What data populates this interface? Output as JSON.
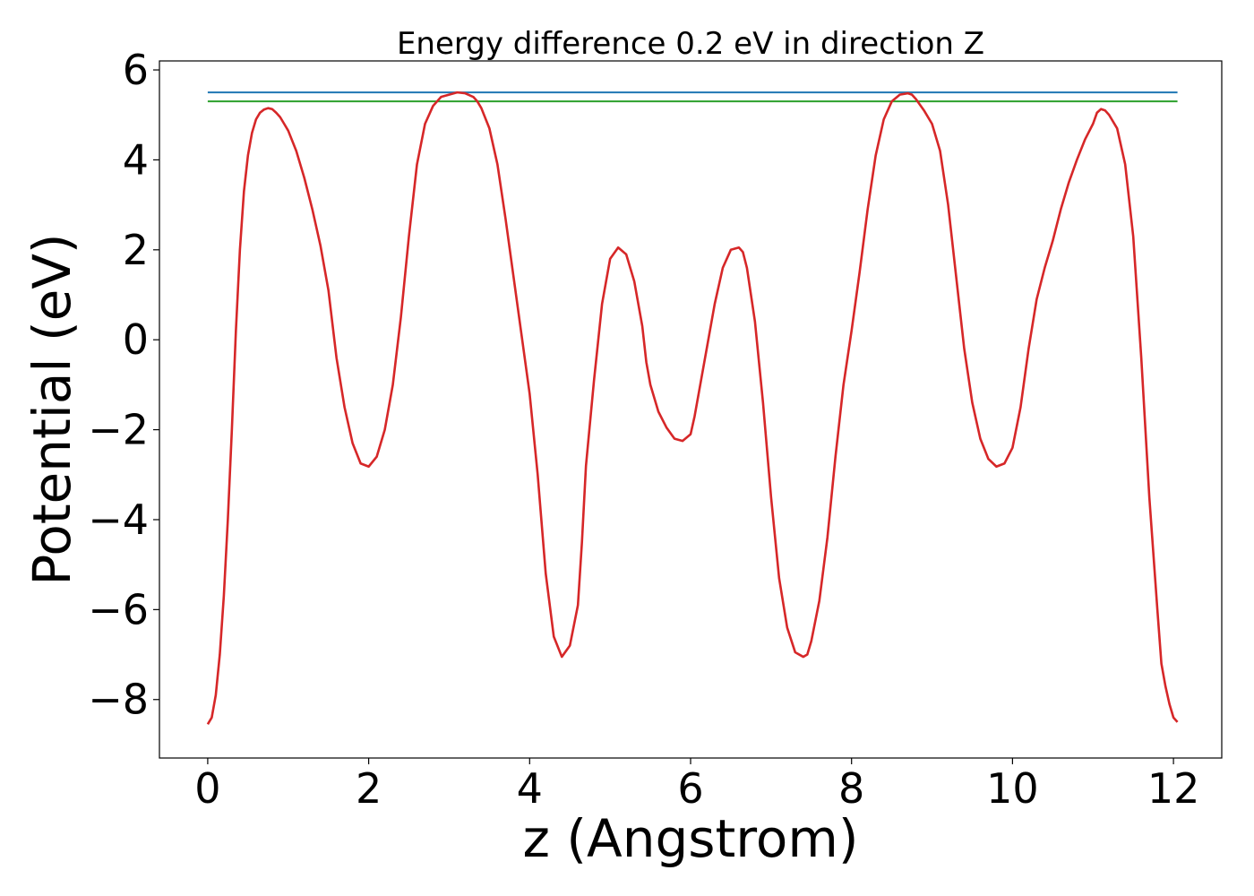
{
  "chart_data": {
    "type": "line",
    "title": "Energy difference 0.2 eV in direction Z",
    "xlabel": "z (Angstrom)",
    "ylabel": "Potential (eV)",
    "xlim": [
      -0.6,
      12.6
    ],
    "ylim": [
      -9.3,
      6.2
    ],
    "xticks": [
      0,
      2,
      4,
      6,
      8,
      10,
      12
    ],
    "yticks": [
      -8,
      -6,
      -4,
      -2,
      0,
      2,
      4,
      6
    ],
    "grid": false,
    "series": [
      {
        "color": "#1f77b4",
        "x": [
          0,
          12.05
        ],
        "y": [
          5.5,
          5.5
        ]
      },
      {
        "color": "#2ca02c",
        "x": [
          0,
          12.05
        ],
        "y": [
          5.3,
          5.3
        ]
      },
      {
        "color": "#d62728",
        "x": [
          0.0,
          0.05,
          0.1,
          0.15,
          0.2,
          0.25,
          0.3,
          0.35,
          0.4,
          0.45,
          0.5,
          0.55,
          0.6,
          0.65,
          0.7,
          0.75,
          0.8,
          0.85,
          0.9,
          0.95,
          1.0,
          1.1,
          1.2,
          1.3,
          1.4,
          1.5,
          1.6,
          1.7,
          1.8,
          1.9,
          2.0,
          2.1,
          2.2,
          2.3,
          2.4,
          2.5,
          2.6,
          2.7,
          2.8,
          2.9,
          3.0,
          3.1,
          3.2,
          3.3,
          3.35,
          3.4,
          3.5,
          3.6,
          3.7,
          3.8,
          3.9,
          4.0,
          4.1,
          4.2,
          4.3,
          4.4,
          4.5,
          4.6,
          4.65,
          4.7,
          4.8,
          4.9,
          5.0,
          5.1,
          5.2,
          5.3,
          5.4,
          5.45,
          5.5,
          5.6,
          5.7,
          5.8,
          5.9,
          6.0,
          6.05,
          6.1,
          6.2,
          6.3,
          6.4,
          6.5,
          6.6,
          6.65,
          6.7,
          6.8,
          6.9,
          7.0,
          7.1,
          7.2,
          7.3,
          7.4,
          7.45,
          7.5,
          7.6,
          7.7,
          7.8,
          7.9,
          8.0,
          8.1,
          8.2,
          8.3,
          8.4,
          8.5,
          8.6,
          8.7,
          8.75,
          8.8,
          8.9,
          9.0,
          9.1,
          9.2,
          9.3,
          9.4,
          9.5,
          9.6,
          9.7,
          9.8,
          9.9,
          10.0,
          10.1,
          10.2,
          10.3,
          10.4,
          10.5,
          10.6,
          10.7,
          10.8,
          10.9,
          11.0,
          11.05,
          11.1,
          11.15,
          11.2,
          11.3,
          11.4,
          11.5,
          11.6,
          11.7,
          11.8,
          11.85,
          11.9,
          11.95,
          12.0,
          12.05
        ],
        "y": [
          -8.55,
          -8.4,
          -7.9,
          -7.0,
          -5.7,
          -4.0,
          -2.0,
          0.2,
          2.0,
          3.3,
          4.1,
          4.6,
          4.9,
          5.05,
          5.12,
          5.15,
          5.13,
          5.05,
          4.95,
          4.8,
          4.65,
          4.2,
          3.6,
          2.9,
          2.1,
          1.1,
          -0.4,
          -1.5,
          -2.3,
          -2.75,
          -2.82,
          -2.6,
          -2.0,
          -1.0,
          0.5,
          2.3,
          3.9,
          4.8,
          5.2,
          5.4,
          5.45,
          5.5,
          5.48,
          5.4,
          5.3,
          5.15,
          4.7,
          3.9,
          2.7,
          1.4,
          0.1,
          -1.2,
          -3.0,
          -5.2,
          -6.6,
          -7.05,
          -6.8,
          -5.9,
          -4.5,
          -2.8,
          -0.9,
          0.8,
          1.8,
          2.05,
          1.9,
          1.3,
          0.3,
          -0.5,
          -1.0,
          -1.6,
          -1.95,
          -2.2,
          -2.25,
          -2.1,
          -1.7,
          -1.2,
          -0.2,
          0.8,
          1.6,
          2.0,
          2.05,
          1.95,
          1.6,
          0.4,
          -1.4,
          -3.5,
          -5.3,
          -6.4,
          -6.95,
          -7.05,
          -7.0,
          -6.7,
          -5.8,
          -4.4,
          -2.6,
          -1.0,
          0.2,
          1.5,
          2.9,
          4.1,
          4.9,
          5.3,
          5.45,
          5.48,
          5.45,
          5.35,
          5.1,
          4.8,
          4.2,
          3.0,
          1.4,
          -0.2,
          -1.4,
          -2.2,
          -2.65,
          -2.82,
          -2.75,
          -2.4,
          -1.5,
          -0.2,
          0.9,
          1.6,
          2.2,
          2.9,
          3.5,
          4.0,
          4.45,
          4.8,
          5.05,
          5.13,
          5.1,
          5.0,
          4.7,
          3.9,
          2.3,
          -0.4,
          -3.5,
          -6.0,
          -7.2,
          -7.7,
          -8.1,
          -8.4,
          -8.5
        ]
      }
    ]
  }
}
